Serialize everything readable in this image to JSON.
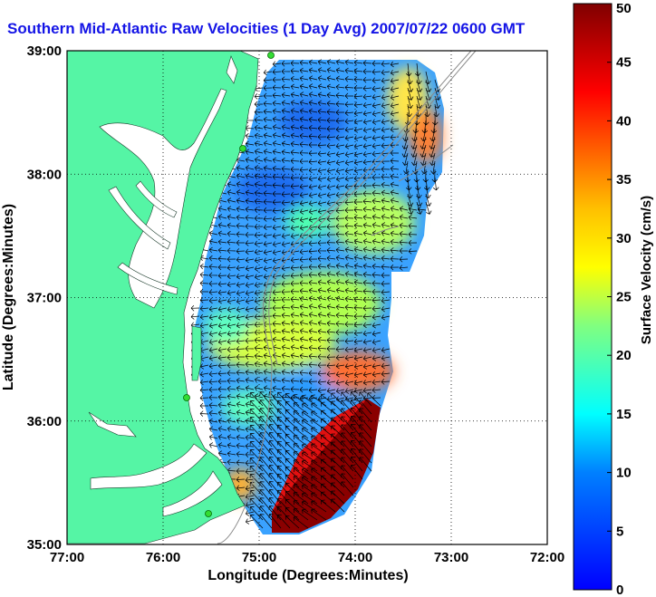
{
  "title": "Southern Mid-Atlantic Raw Velocities (1 Day Avg) 2007/07/22 0600 GMT",
  "map": {
    "x_axis_label": "Longitude (Degrees:Minutes)",
    "y_axis_label": "Latitude (Degrees:Minutes)",
    "lon_ticks": [
      "77:00",
      "76:00",
      "75:00",
      "74:00",
      "73:00",
      "72:00"
    ],
    "lat_ticks": [
      "39:00",
      "38:00",
      "37:00",
      "36:00",
      "35:00"
    ],
    "lon_range": [
      -77,
      -72
    ],
    "lat_range": [
      35,
      39
    ],
    "grid": "dotted",
    "land_color": "#55f5a5",
    "marker_color": "#33dd33"
  },
  "colorbar": {
    "label": "Surface Velocity (cm/s)",
    "ticks": [
      "0",
      "5",
      "10",
      "15",
      "20",
      "25",
      "30",
      "35",
      "40",
      "45",
      "50"
    ],
    "range": [
      0,
      50
    ],
    "colormap": "jet"
  }
}
